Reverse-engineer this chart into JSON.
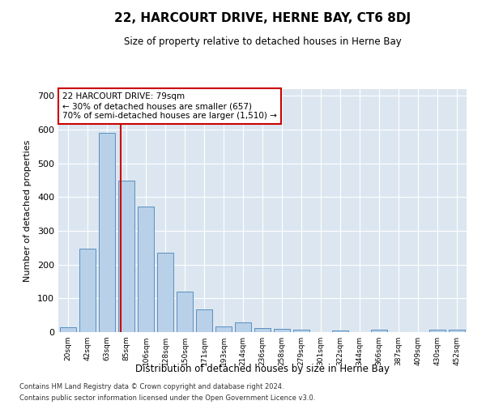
{
  "title": "22, HARCOURT DRIVE, HERNE BAY, CT6 8DJ",
  "subtitle": "Size of property relative to detached houses in Herne Bay",
  "xlabel": "Distribution of detached houses by size in Herne Bay",
  "ylabel": "Number of detached properties",
  "categories": [
    "20sqm",
    "42sqm",
    "63sqm",
    "85sqm",
    "106sqm",
    "128sqm",
    "150sqm",
    "171sqm",
    "193sqm",
    "214sqm",
    "236sqm",
    "258sqm",
    "279sqm",
    "301sqm",
    "322sqm",
    "344sqm",
    "366sqm",
    "387sqm",
    "409sqm",
    "430sqm",
    "452sqm"
  ],
  "values": [
    15,
    248,
    590,
    448,
    373,
    235,
    120,
    68,
    17,
    28,
    12,
    10,
    7,
    0,
    5,
    0,
    8,
    0,
    0,
    7,
    8
  ],
  "bar_color": "#b8d0e8",
  "bar_edge_color": "#5a8fc0",
  "marker_color": "#cc0000",
  "annotation_line1": "22 HARCOURT DRIVE: 79sqm",
  "annotation_line2": "← 30% of detached houses are smaller (657)",
  "annotation_line3": "70% of semi-detached houses are larger (1,510) →",
  "annotation_box_color": "#ffffff",
  "annotation_box_edge_color": "#cc0000",
  "ylim": [
    0,
    720
  ],
  "yticks": [
    0,
    100,
    200,
    300,
    400,
    500,
    600,
    700
  ],
  "background_color": "#dce6f0",
  "footer1": "Contains HM Land Registry data © Crown copyright and database right 2024.",
  "footer2": "Contains public sector information licensed under the Open Government Licence v3.0."
}
